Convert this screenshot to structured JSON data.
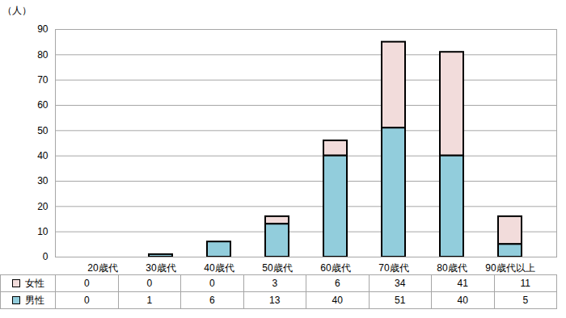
{
  "chart_data": {
    "type": "bar",
    "stacked": true,
    "ylabel": "（人）",
    "categories": [
      "20歳代",
      "30歳代",
      "40歳代",
      "50歳代",
      "60歳代",
      "70歳代",
      "80歳代",
      "90歳代以上"
    ],
    "series": [
      {
        "name": "女性",
        "color": "#f2dcdb",
        "values": [
          0,
          0,
          0,
          3,
          6,
          34,
          41,
          11
        ]
      },
      {
        "name": "男性",
        "color": "#92cddc",
        "values": [
          0,
          1,
          6,
          13,
          40,
          51,
          40,
          5
        ]
      }
    ],
    "ylim": [
      0,
      90
    ],
    "yticks": [
      0,
      10,
      20,
      30,
      40,
      50,
      60,
      70,
      80,
      90
    ],
    "grid": true
  }
}
